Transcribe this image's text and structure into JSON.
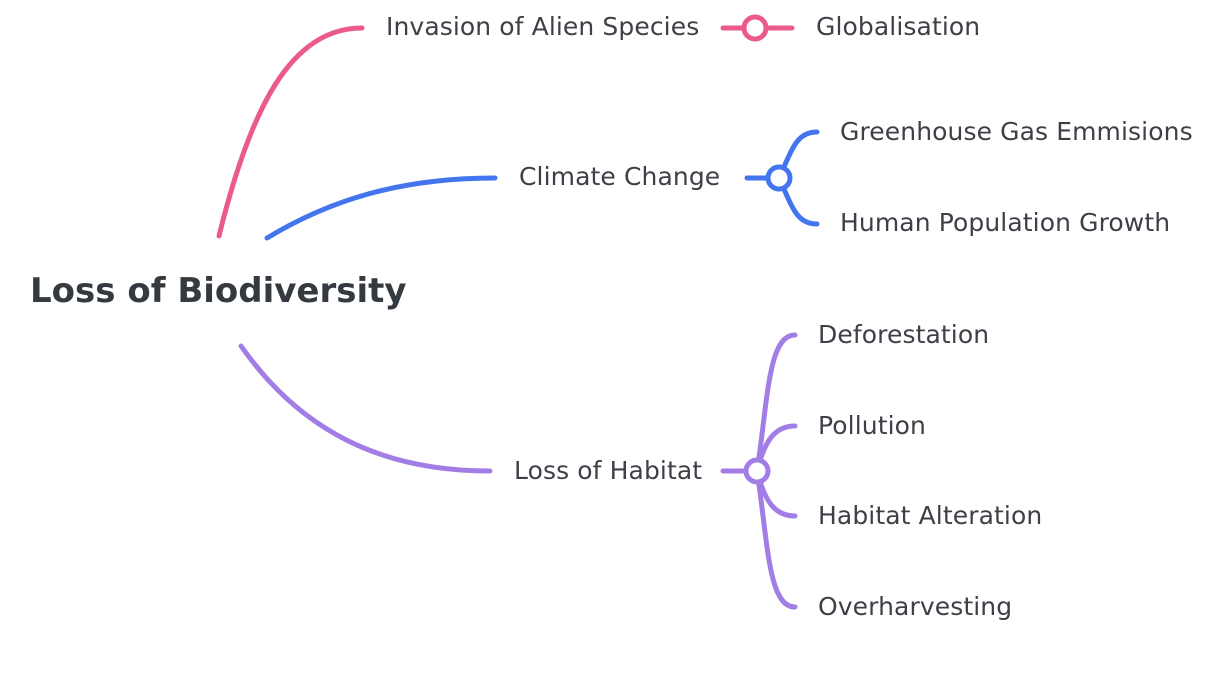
{
  "root": {
    "label": "Loss of Biodiversity"
  },
  "branches": [
    {
      "label": "Invasion of Alien Species",
      "color": "#ea5b8a",
      "children": [
        "Globalisation"
      ]
    },
    {
      "label": "Climate Change",
      "color": "#4376ee",
      "children": [
        "Greenhouse Gas Emmisions",
        "Human Population Growth"
      ]
    },
    {
      "label": "Loss of Habitat",
      "color": "#a27de6",
      "children": [
        "Deforestation",
        "Pollution",
        "Habitat Alteration",
        "Overharvesting"
      ]
    }
  ]
}
